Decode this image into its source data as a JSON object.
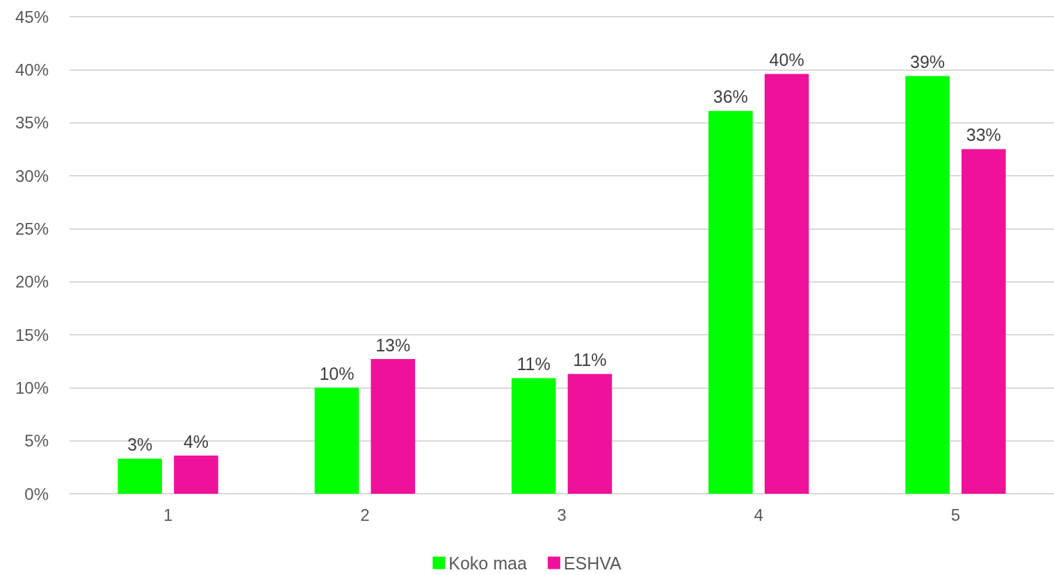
{
  "chart_data": {
    "type": "bar",
    "categories": [
      "1",
      "2",
      "3",
      "4",
      "5"
    ],
    "series": [
      {
        "name": "Koko maa",
        "color": "#00ff00",
        "values": [
          3.3,
          10.0,
          10.9,
          36.1,
          39.4
        ],
        "value_labels": [
          "3%",
          "10%",
          "11%",
          "36%",
          "39%"
        ]
      },
      {
        "name": "ESHVA",
        "color": "#f0119b",
        "values": [
          3.6,
          12.7,
          11.3,
          39.6,
          32.5
        ],
        "value_labels": [
          "4%",
          "13%",
          "11%",
          "40%",
          "33%"
        ]
      }
    ],
    "ylim": [
      0,
      45
    ],
    "yticks": [
      {
        "value": 0,
        "label": "0%"
      },
      {
        "value": 5,
        "label": "5%"
      },
      {
        "value": 10,
        "label": "10%"
      },
      {
        "value": 15,
        "label": "15%"
      },
      {
        "value": 20,
        "label": "20%"
      },
      {
        "value": 25,
        "label": "25%"
      },
      {
        "value": 30,
        "label": "30%"
      },
      {
        "value": 35,
        "label": "35%"
      },
      {
        "value": 40,
        "label": "40%"
      },
      {
        "value": 45,
        "label": "45%"
      }
    ],
    "grid": "y",
    "legend": "bottom"
  }
}
